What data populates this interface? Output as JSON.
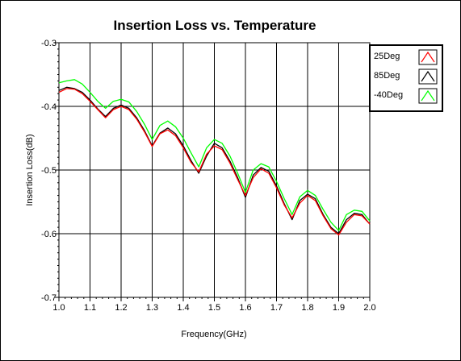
{
  "chart_data": {
    "type": "line",
    "title": "Insertion Loss vs. Temperature",
    "xlabel": "Frequency(GHz)",
    "ylabel": "Insertion Loss(dB)",
    "xlim": [
      1.0,
      2.0
    ],
    "ylim": [
      -0.7,
      -0.3
    ],
    "xticks": [
      "1.0",
      "1.1",
      "1.2",
      "1.3",
      "1.4",
      "1.5",
      "1.6",
      "1.7",
      "1.8",
      "1.9",
      "2.0"
    ],
    "yticks": [
      "-0.3",
      "-0.4",
      "-0.5",
      "-0.6",
      "-0.7"
    ],
    "grid": true,
    "legend_position": "top-right, outside plot",
    "x": [
      1.0,
      1.025,
      1.05,
      1.075,
      1.1,
      1.125,
      1.15,
      1.175,
      1.2,
      1.225,
      1.25,
      1.275,
      1.3,
      1.325,
      1.35,
      1.375,
      1.4,
      1.425,
      1.45,
      1.475,
      1.5,
      1.525,
      1.55,
      1.575,
      1.6,
      1.625,
      1.65,
      1.675,
      1.7,
      1.725,
      1.75,
      1.775,
      1.8,
      1.825,
      1.85,
      1.875,
      1.9,
      1.925,
      1.95,
      1.975,
      2.0
    ],
    "series": [
      {
        "name": "25Deg",
        "color": "#ff0000",
        "values": [
          -0.378,
          -0.372,
          -0.373,
          -0.38,
          -0.392,
          -0.405,
          -0.418,
          -0.405,
          -0.4,
          -0.405,
          -0.42,
          -0.44,
          -0.463,
          -0.443,
          -0.437,
          -0.446,
          -0.465,
          -0.488,
          -0.503,
          -0.475,
          -0.462,
          -0.468,
          -0.489,
          -0.515,
          -0.54,
          -0.512,
          -0.498,
          -0.505,
          -0.528,
          -0.555,
          -0.575,
          -0.552,
          -0.54,
          -0.548,
          -0.572,
          -0.592,
          -0.602,
          -0.582,
          -0.57,
          -0.572,
          -0.585
        ]
      },
      {
        "name": "85Deg",
        "color": "#000000",
        "values": [
          -0.375,
          -0.37,
          -0.372,
          -0.378,
          -0.39,
          -0.404,
          -0.416,
          -0.403,
          -0.398,
          -0.403,
          -0.418,
          -0.438,
          -0.462,
          -0.442,
          -0.434,
          -0.443,
          -0.462,
          -0.485,
          -0.505,
          -0.478,
          -0.458,
          -0.465,
          -0.486,
          -0.512,
          -0.543,
          -0.508,
          -0.496,
          -0.502,
          -0.525,
          -0.553,
          -0.578,
          -0.548,
          -0.538,
          -0.545,
          -0.57,
          -0.59,
          -0.6,
          -0.578,
          -0.568,
          -0.57,
          -0.585
        ]
      },
      {
        "name": "-40Deg",
        "color": "#00ff00",
        "values": [
          -0.363,
          -0.36,
          -0.358,
          -0.365,
          -0.378,
          -0.392,
          -0.403,
          -0.392,
          -0.389,
          -0.393,
          -0.408,
          -0.428,
          -0.452,
          -0.43,
          -0.423,
          -0.432,
          -0.45,
          -0.473,
          -0.495,
          -0.465,
          -0.452,
          -0.458,
          -0.478,
          -0.505,
          -0.535,
          -0.5,
          -0.49,
          -0.495,
          -0.518,
          -0.545,
          -0.57,
          -0.542,
          -0.532,
          -0.54,
          -0.562,
          -0.582,
          -0.595,
          -0.57,
          -0.563,
          -0.565,
          -0.58
        ]
      }
    ]
  }
}
